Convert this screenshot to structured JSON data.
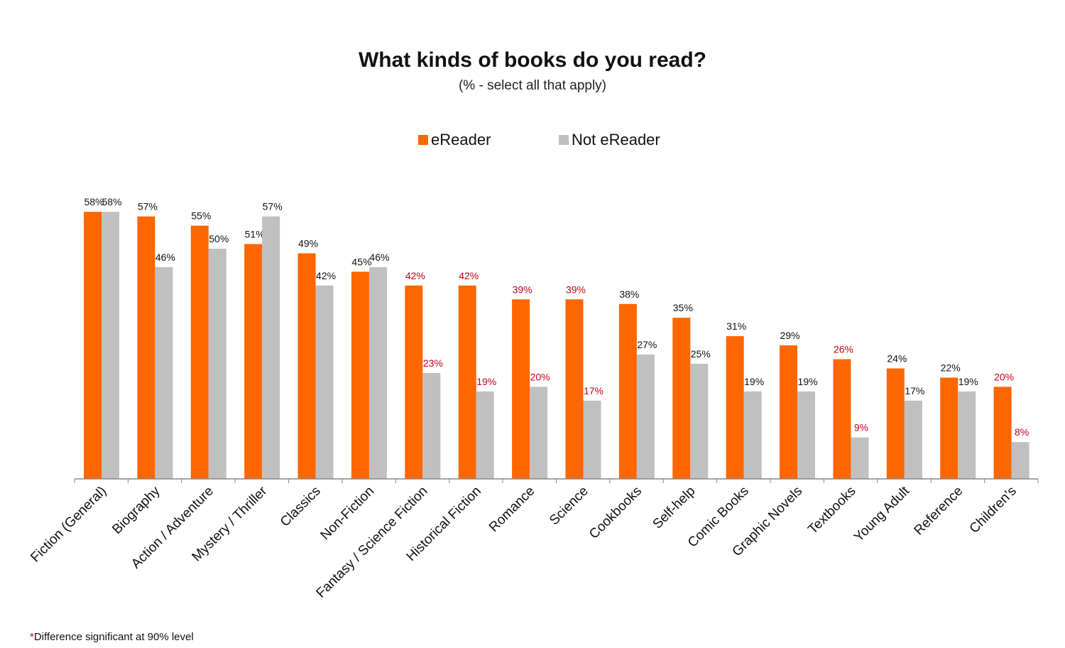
{
  "chart_data": {
    "type": "bar",
    "title": "What kinds of books do you read?",
    "subtitle": "(% - select all that apply)",
    "xlabel": "",
    "ylabel": "",
    "ylim": [
      0,
      65
    ],
    "grid": false,
    "legend_position": "top-center",
    "categories": [
      "Fiction (General)",
      "Biography",
      "Action / Adventure",
      "Mystery / Thriller",
      "Classics",
      "Non-Fiction",
      "Fantasy / Science Fiction",
      "Historical Fiction",
      "Romance",
      "Science",
      "Cookbooks",
      "Self-help",
      "Comic Books",
      "Graphic Novels",
      "Textbooks",
      "Young Adult",
      "Reference",
      "Children's"
    ],
    "series": [
      {
        "name": "eReader",
        "color": "#ff6600",
        "values": [
          58,
          57,
          55,
          51,
          49,
          45,
          42,
          42,
          39,
          39,
          38,
          35,
          31,
          29,
          26,
          24,
          22,
          20
        ]
      },
      {
        "name": "Not eReader",
        "color": "#c0c0c0",
        "values": [
          58,
          46,
          50,
          57,
          42,
          46,
          23,
          19,
          20,
          17,
          27,
          25,
          19,
          19,
          9,
          17,
          19,
          8
        ]
      }
    ],
    "data_labels": {
      "eReader": [
        "58%",
        "57%",
        "55%",
        "51%",
        "49%",
        "45%",
        "42%",
        "42%",
        "39%",
        "39%",
        "38%",
        "35%",
        "31%",
        "29%",
        "26%",
        "24%",
        "22%",
        "20%"
      ],
      "Not eReader": [
        "58%",
        "46%",
        "50%",
        "57%",
        "42%",
        "46%",
        "23%",
        "19%",
        "20%",
        "17%",
        "27%",
        "25%",
        "19%",
        "19%",
        "9%",
        "17%",
        "19%",
        "8%"
      ]
    },
    "significant_categories": [
      "Fantasy / Science Fiction",
      "Historical Fiction",
      "Romance",
      "Science",
      "Textbooks",
      "Children's"
    ],
    "significant_label_color": "#c0001a",
    "label_color": "#111111",
    "footnote_marker": "*",
    "footnote": "Difference significant at 90% level"
  }
}
